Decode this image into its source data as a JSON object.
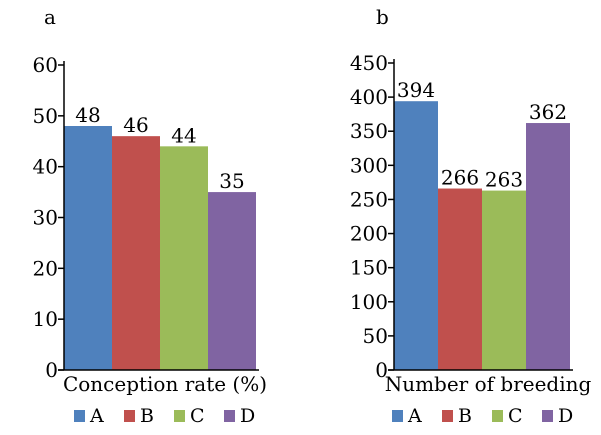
{
  "chart_data": [
    {
      "panel": "a",
      "type": "bar",
      "categories": [
        "A",
        "B",
        "C",
        "D"
      ],
      "values": [
        48,
        46,
        44,
        35
      ],
      "xlabel": "Conception rate (%)",
      "ylabel": "",
      "ylim": [
        0,
        60
      ],
      "yticks": [
        0,
        10,
        20,
        30,
        40,
        50,
        60
      ],
      "grid": false,
      "legend": "bottom"
    },
    {
      "panel": "b",
      "type": "bar",
      "categories": [
        "A",
        "B",
        "C",
        "D"
      ],
      "values": [
        394,
        266,
        263,
        362
      ],
      "xlabel": "Number of breeding",
      "ylabel": "",
      "ylim": [
        0,
        450
      ],
      "yticks": [
        0,
        50,
        100,
        150,
        200,
        250,
        300,
        350,
        400,
        450
      ],
      "grid": false,
      "legend": "bottom"
    }
  ],
  "colors": {
    "A": "#4f81bd",
    "B": "#c0504d",
    "C": "#9bbb59",
    "D": "#8064a2"
  }
}
